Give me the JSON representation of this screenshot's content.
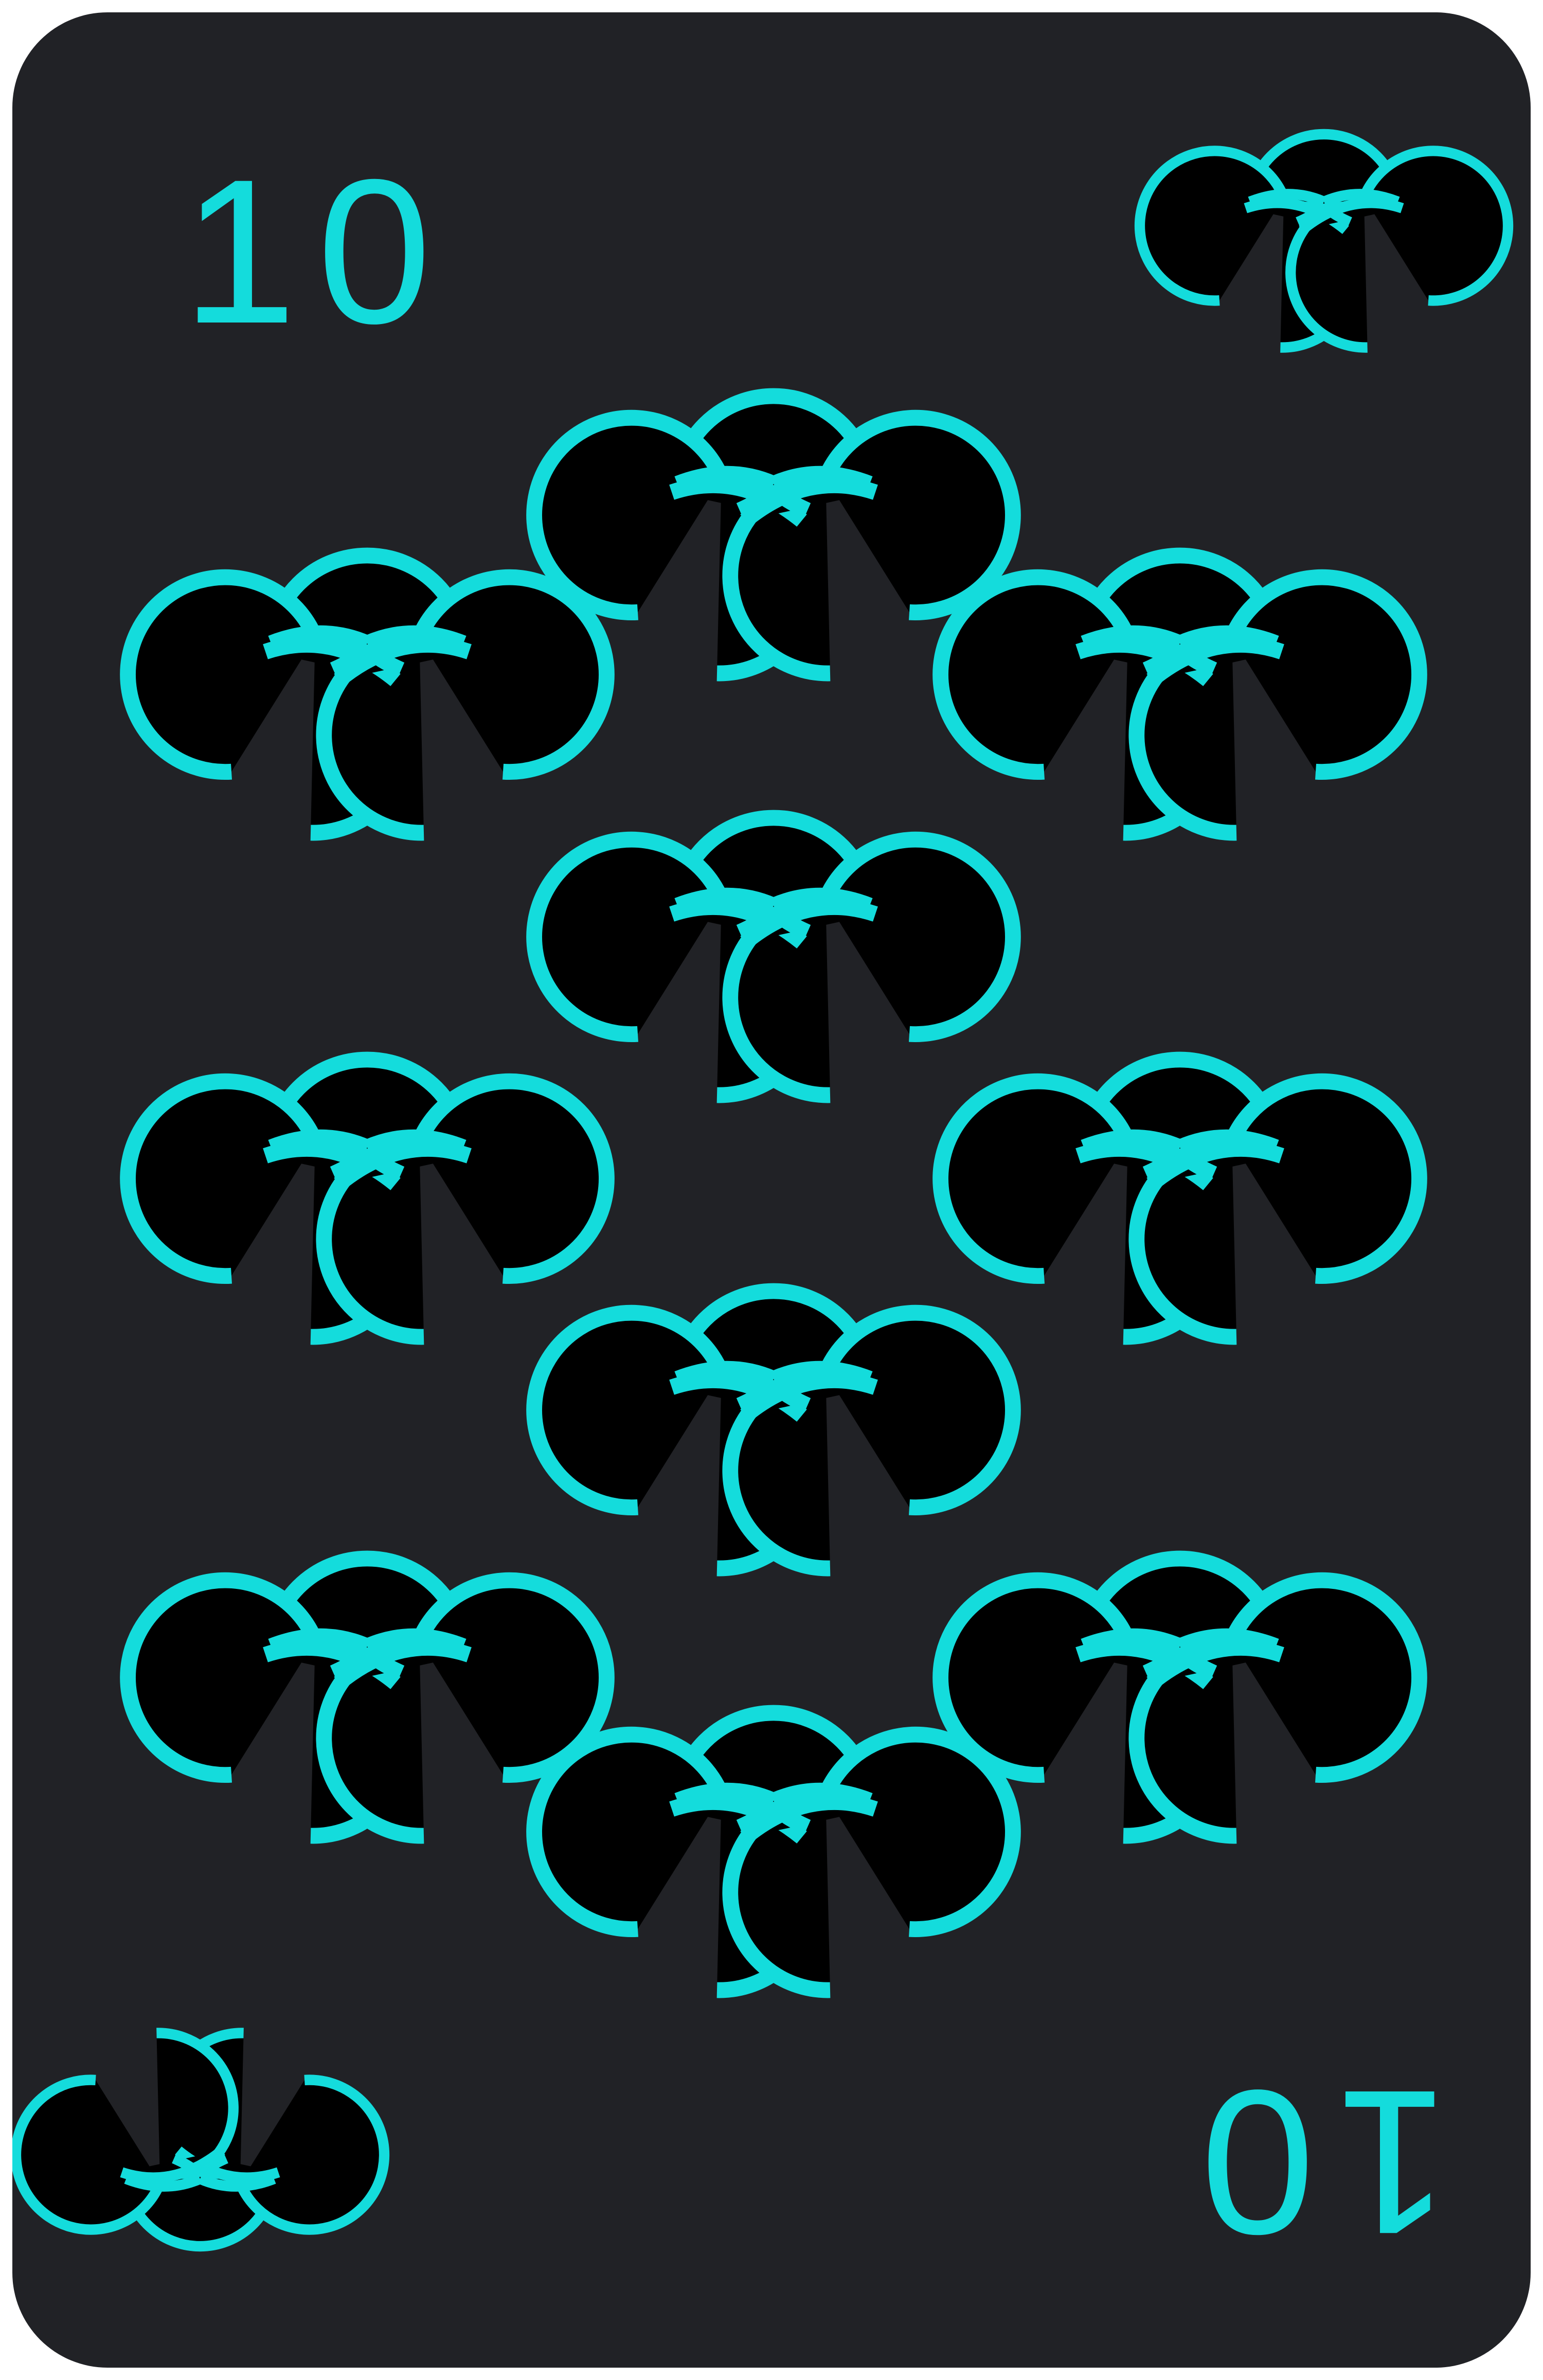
{
  "card": {
    "rank": "10",
    "suit_icon": "triple-ring-clover-icon",
    "pip_count": 10,
    "colors": {
      "background": "#212226",
      "accent": "#14dcdc",
      "border": "#ffffff"
    }
  }
}
